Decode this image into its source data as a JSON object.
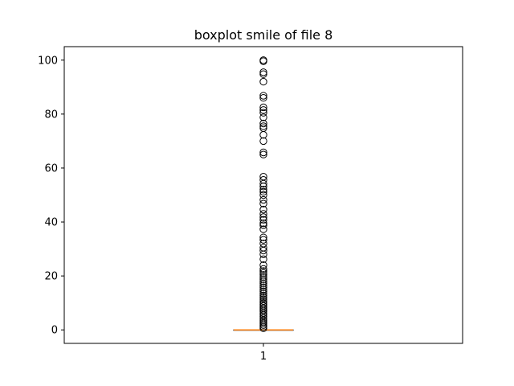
{
  "chart_data": {
    "type": "boxplot",
    "title": "boxplot smile of file 8",
    "xlabel": "",
    "ylabel": "",
    "categories": [
      "1"
    ],
    "ylim": [
      -5,
      105
    ],
    "yticks": [
      0,
      20,
      40,
      60,
      80,
      100
    ],
    "grid": false,
    "colors": {
      "median": "#ff7f0e",
      "box": "#000000",
      "flier": "#000000"
    },
    "boxes": [
      {
        "label": "1",
        "min": 0,
        "q1": 0,
        "median": 0,
        "q3": 0,
        "max": 0,
        "fliers": [
          0.6,
          1.2,
          1.8,
          2.4,
          3.0,
          3.6,
          4.3,
          5.0,
          5.6,
          6.2,
          6.9,
          7.5,
          8.1,
          8.8,
          9.4,
          10.0,
          10.7,
          11.4,
          12.1,
          12.8,
          13.5,
          14.3,
          15.0,
          15.8,
          16.5,
          17.3,
          18.0,
          18.8,
          19.6,
          20.4,
          21.1,
          21.8,
          22.6,
          24.0,
          26.2,
          28.0,
          29.4,
          30.5,
          32.0,
          33.4,
          34.3,
          37.3,
          38.8,
          39.5,
          40.8,
          41.8,
          43.0,
          44.6,
          46.8,
          48.2,
          50.0,
          51.2,
          52.0,
          53.2,
          54.2,
          55.6,
          56.8,
          65.0,
          65.8,
          70.0,
          72.3,
          74.8,
          75.5,
          76.5,
          78.8,
          80.5,
          81.5,
          82.5,
          86.0,
          86.8,
          92.0,
          94.8,
          95.5,
          99.6,
          100.0
        ]
      }
    ]
  }
}
